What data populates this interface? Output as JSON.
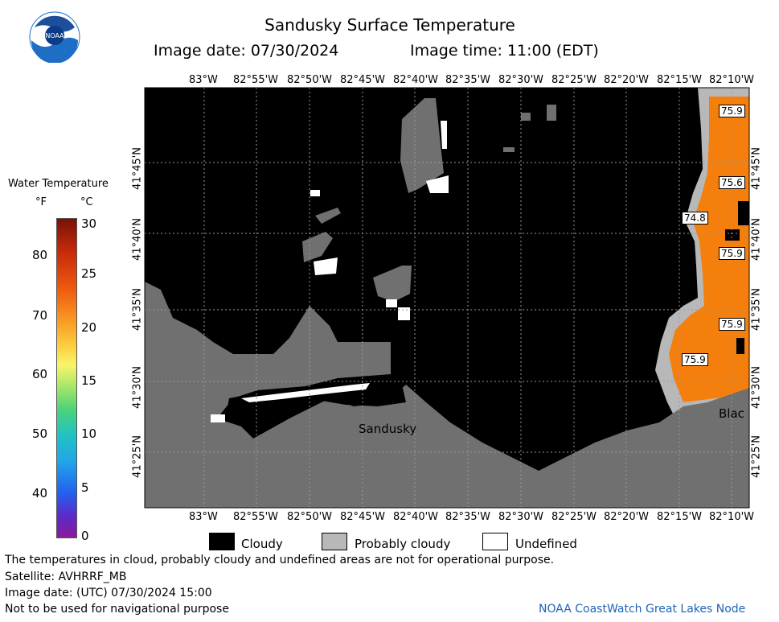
{
  "header": {
    "title": "Sandusky Surface Temperature",
    "image_date": "Image date: 07/30/2024",
    "image_time": "Image time: 11:00 (EDT)"
  },
  "logo": {
    "text": "NOAA"
  },
  "colorbar": {
    "title": "Water Temperature",
    "unit_f": "°F",
    "unit_c": "°C",
    "f_ticks": [
      "80",
      "70",
      "60",
      "50",
      "40"
    ],
    "c_ticks": [
      "30",
      "25",
      "20",
      "15",
      "10",
      "5",
      "0"
    ]
  },
  "axes": {
    "lon_ticks_top": [
      "83°W",
      "82°55'W",
      "82°50'W",
      "82°45'W",
      "82°40'W",
      "82°35'W",
      "82°30'W",
      "82°25'W",
      "82°20'W",
      "82°15'W",
      "82°10'W"
    ],
    "lon_ticks_bottom": [
      "83°W",
      "82°55'W",
      "82°50'W",
      "82°45'W",
      "82°40'W",
      "82°35'W",
      "82°30'W",
      "82°25'W",
      "82°20'W",
      "82°15'W",
      "82°10'W"
    ],
    "lat_ticks": [
      "41°45'N",
      "41°40'N",
      "41°35'N",
      "41°30'N",
      "41°25'N"
    ]
  },
  "map": {
    "place_labels": [
      "Sandusky",
      "Blac"
    ],
    "temperature_labels": [
      "75.9",
      "75.6",
      "74.8",
      "75.9",
      "75.9",
      "75.9"
    ]
  },
  "legend": {
    "cloudy": "Cloudy",
    "probably_cloudy": "Probably cloudy",
    "undefined": "Undefined"
  },
  "footer": {
    "disclaimer": "The temperatures in cloud, probably cloudy and undefined areas are not for operational purpose.",
    "satellite": "Satellite: AVHRRF_MB",
    "utc_date": "Image date: (UTC) 07/30/2024  15:00",
    "navigation": "Not to be used for navigational purpose",
    "credit": "NOAA CoastWatch Great Lakes Node"
  },
  "colors": {
    "water_black": "#000000",
    "land_gray": "#707070",
    "probably_cloudy_gray": "#b8b8b8",
    "warm_orange": "#f57f0c"
  }
}
